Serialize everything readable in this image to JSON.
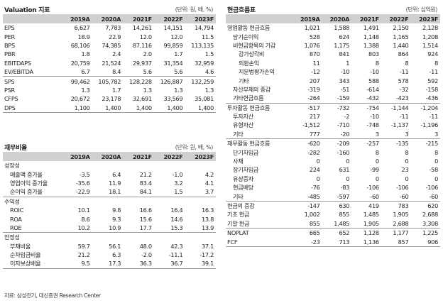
{
  "valuation": {
    "title": "Valuation 지표",
    "unit": "(단위: 원, 배, %)",
    "headers": [
      "",
      "2019A",
      "2020A",
      "2021F",
      "2022F",
      "2023F"
    ],
    "rows": [
      {
        "label": "EPS",
        "values": [
          "6,627",
          "7,783",
          "14,261",
          "14,151",
          "14,794"
        ]
      },
      {
        "label": "PER",
        "values": [
          "18.9",
          "22.9",
          "12.0",
          "12.0",
          "11.5"
        ]
      },
      {
        "label": "BPS",
        "values": [
          "68,106",
          "74,385",
          "87,116",
          "99,859",
          "113,135"
        ]
      },
      {
        "label": "PBR",
        "values": [
          "1.8",
          "2.4",
          "2.0",
          "1.7",
          "1.5"
        ]
      },
      {
        "label": "EBITDAPS",
        "values": [
          "20,759",
          "21,524",
          "29,937",
          "31,354",
          "32,959"
        ]
      },
      {
        "label": "EV/EBITDA",
        "values": [
          "6.7",
          "8.4",
          "5.6",
          "5.6",
          "4.6"
        ]
      },
      {
        "label": "SPS",
        "values": [
          "99,462",
          "105,782",
          "128,228",
          "126,887",
          "132,259"
        ]
      },
      {
        "label": "PSR",
        "values": [
          "1.3",
          "1.7",
          "1.3",
          "1.3",
          "1.3"
        ]
      },
      {
        "label": "CFPS",
        "values": [
          "20,672",
          "23,178",
          "32,691",
          "33,569",
          "35,081"
        ]
      },
      {
        "label": "DPS",
        "values": [
          "1,100",
          "1,400",
          "1,400",
          "1,400",
          "1,400"
        ]
      }
    ]
  },
  "financial_ratio": {
    "title": "재무비율",
    "unit": "(단위: 원, 배, %)",
    "headers": [
      "",
      "2019A",
      "2020A",
      "2021F",
      "2022F",
      "2023F"
    ],
    "rows": [
      {
        "label": "성장성",
        "level": 0,
        "values": [
          "",
          "",
          "",
          "",
          ""
        ]
      },
      {
        "label": "매출액 증가율",
        "level": 1,
        "values": [
          "-3.5",
          "6.4",
          "21.2",
          "-1.0",
          "4.2"
        ]
      },
      {
        "label": "영업이익 증가율",
        "level": 1,
        "values": [
          "-35.6",
          "11.9",
          "83.4",
          "3.2",
          "4.1"
        ]
      },
      {
        "label": "순이익 증가율",
        "level": 1,
        "values": [
          "-22.9",
          "18.1",
          "84.1",
          "1.5",
          "3.7"
        ]
      },
      {
        "label": "수익성",
        "level": 0,
        "values": [
          "",
          "",
          "",
          "",
          ""
        ]
      },
      {
        "label": "ROIC",
        "level": 1,
        "values": [
          "10.1",
          "9.8",
          "16.6",
          "16.4",
          "16.3"
        ]
      },
      {
        "label": "ROA",
        "level": 1,
        "values": [
          "8.6",
          "9.3",
          "15.6",
          "14.6",
          "13.8"
        ]
      },
      {
        "label": "ROE",
        "level": 1,
        "values": [
          "10.2",
          "10.9",
          "17.7",
          "15.3",
          "13.9"
        ]
      },
      {
        "label": "안정성",
        "level": 0,
        "values": [
          "",
          "",
          "",
          "",
          ""
        ]
      },
      {
        "label": "부채비율",
        "level": 1,
        "values": [
          "59.7",
          "56.1",
          "48.0",
          "42.3",
          "37.1"
        ]
      },
      {
        "label": "순차입금비율",
        "level": 1,
        "values": [
          "21.2",
          "6.3",
          "-2.0",
          "-11.1",
          "-17.2"
        ]
      },
      {
        "label": "이자보상배율",
        "level": 1,
        "values": [
          "9.5",
          "17.3",
          "36.3",
          "36.7",
          "39.1"
        ]
      }
    ]
  },
  "cashflow": {
    "title": "현금흐름표",
    "unit": "(단위: 십억원)",
    "headers": [
      "",
      "2019A",
      "2020A",
      "2021F",
      "2022F",
      "2023F"
    ],
    "rows": [
      {
        "label": "영업활동 현금흐름",
        "level": 0,
        "values": [
          "1,021",
          "1,588",
          "1,491",
          "2,150",
          "2,128"
        ]
      },
      {
        "label": "당기순이익",
        "level": 1,
        "values": [
          "528",
          "624",
          "1,148",
          "1,165",
          "1,208"
        ]
      },
      {
        "label": "비현금항목의 가감",
        "level": 1,
        "values": [
          "1,076",
          "1,175",
          "1,388",
          "1,440",
          "1,514"
        ]
      },
      {
        "label": "감가상각비",
        "level": 2,
        "values": [
          "870",
          "841",
          "803",
          "864",
          "924"
        ]
      },
      {
        "label": "외환손익",
        "level": 2,
        "values": [
          "11",
          "1",
          "8",
          "8",
          "8"
        ]
      },
      {
        "label": "지분법평가손익",
        "level": 2,
        "values": [
          "-12",
          "-10",
          "-10",
          "-11",
          "-11"
        ]
      },
      {
        "label": "기타",
        "level": 2,
        "values": [
          "207",
          "343",
          "588",
          "578",
          "592"
        ]
      },
      {
        "label": "자산부채의 증감",
        "level": 1,
        "values": [
          "-319",
          "-51",
          "-614",
          "-32",
          "-158"
        ]
      },
      {
        "label": "기타현금흐름",
        "level": 1,
        "values": [
          "-264",
          "-159",
          "-432",
          "-423",
          "-436"
        ]
      },
      {
        "label": "투자활동 현금흐름",
        "level": 0,
        "values": [
          "-517",
          "-732",
          "-754",
          "-1,144",
          "-1,204"
        ]
      },
      {
        "label": "투자자산",
        "level": 1,
        "values": [
          "217",
          "-2",
          "-10",
          "-11",
          "-11"
        ]
      },
      {
        "label": "유형자산",
        "level": 1,
        "values": [
          "-1,512",
          "-710",
          "-748",
          "-1,137",
          "-1,196"
        ]
      },
      {
        "label": "기타",
        "level": 1,
        "values": [
          "777",
          "-20",
          "3",
          "3",
          "3"
        ]
      },
      {
        "label": "재무활동 현금흐름",
        "level": 0,
        "values": [
          "-620",
          "-209",
          "-257",
          "-135",
          "-215"
        ]
      },
      {
        "label": "단기차입금",
        "level": 1,
        "values": [
          "-282",
          "-160",
          "8",
          "8",
          "8"
        ]
      },
      {
        "label": "사채",
        "level": 1,
        "values": [
          "0",
          "0",
          "0",
          "0",
          "0"
        ]
      },
      {
        "label": "장기차입금",
        "level": 1,
        "values": [
          "224",
          "631",
          "-99",
          "23",
          "-58"
        ]
      },
      {
        "label": "유상증자",
        "level": 1,
        "values": [
          "0",
          "0",
          "0",
          "0",
          "0"
        ]
      },
      {
        "label": "현금배당",
        "level": 1,
        "values": [
          "-76",
          "-83",
          "-106",
          "-106",
          "-106"
        ]
      },
      {
        "label": "기타",
        "level": 1,
        "values": [
          "-485",
          "-597",
          "-60",
          "-60",
          "-60"
        ]
      },
      {
        "label": "현금의 증감",
        "level": 0,
        "values": [
          "-147",
          "630",
          "419",
          "783",
          "620"
        ]
      },
      {
        "label": "기초 현금",
        "level": 0,
        "values": [
          "1,002",
          "855",
          "1,485",
          "1,905",
          "2,688"
        ]
      },
      {
        "label": "기말 현금",
        "level": 0,
        "values": [
          "855",
          "1,485",
          "1,905",
          "2,688",
          "3,308"
        ]
      },
      {
        "label": "NOPLAT",
        "level": 0,
        "values": [
          "665",
          "652",
          "1,128",
          "1,177",
          "1,225"
        ]
      },
      {
        "label": "FCF",
        "level": 0,
        "values": [
          "-23",
          "713",
          "1,136",
          "857",
          "906"
        ]
      }
    ]
  },
  "source": "자료: 삼성전기, 대신증권 Research Center"
}
